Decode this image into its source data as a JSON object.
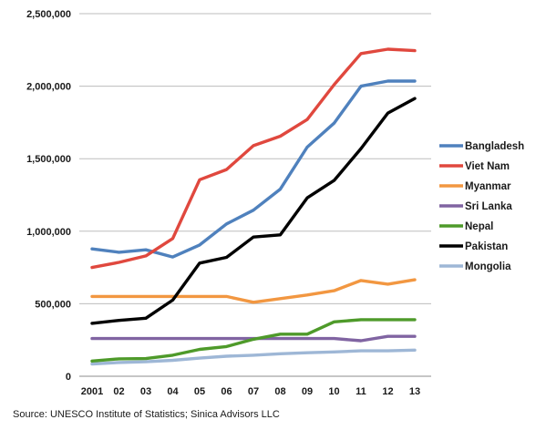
{
  "chart_data": {
    "type": "line",
    "title": "",
    "xlabel": "",
    "ylabel": "",
    "categories": [
      "2001",
      "02",
      "03",
      "04",
      "05",
      "06",
      "07",
      "08",
      "09",
      "10",
      "11",
      "12",
      "13"
    ],
    "ylim": [
      0,
      2500000
    ],
    "yticks": [
      0,
      500000,
      1000000,
      1500000,
      2000000,
      2500000
    ],
    "ytick_labels": [
      "0",
      "500,000",
      "1,000,000",
      "1,500,000",
      "2,000,000",
      "2,500,000"
    ],
    "grid": true,
    "legend_position": "right",
    "series": [
      {
        "name": "Bangladesh",
        "color": "#4f81bd",
        "values": [
          878000,
          855000,
          872000,
          822000,
          905000,
          1050000,
          1145000,
          1290000,
          1580000,
          1745000,
          2000000,
          2035000,
          2035000
        ]
      },
      {
        "name": "Viet Nam",
        "color": "#e0483e",
        "values": [
          750000,
          785000,
          830000,
          950000,
          1355000,
          1425000,
          1590000,
          1655000,
          1770000,
          2010000,
          2225000,
          2255000,
          2245000
        ]
      },
      {
        "name": "Myanmar",
        "color": "#f29741",
        "values": [
          550000,
          550000,
          550000,
          550000,
          550000,
          550000,
          510000,
          535000,
          560000,
          590000,
          660000,
          635000,
          665000
        ]
      },
      {
        "name": "Sri Lanka",
        "color": "#8064a2",
        "values": [
          260000,
          260000,
          260000,
          260000,
          260000,
          260000,
          260000,
          260000,
          260000,
          260000,
          245000,
          275000,
          275000
        ]
      },
      {
        "name": "Nepal",
        "color": "#4e9a2a",
        "values": [
          105000,
          120000,
          122000,
          145000,
          185000,
          205000,
          255000,
          290000,
          290000,
          375000,
          390000,
          390000,
          390000
        ]
      },
      {
        "name": "Pakistan",
        "color": "#000000",
        "values": [
          365000,
          385000,
          400000,
          525000,
          780000,
          820000,
          960000,
          975000,
          1230000,
          1350000,
          1570000,
          1815000,
          1915000
        ]
      },
      {
        "name": "Mongolia",
        "color": "#9eb7d6",
        "values": [
          85000,
          95000,
          100000,
          110000,
          125000,
          138000,
          145000,
          155000,
          162000,
          168000,
          175000,
          175000,
          180000
        ]
      }
    ]
  },
  "source_text": "Source: UNESCO Institute of Statistics; Sinica Advisors LLC"
}
